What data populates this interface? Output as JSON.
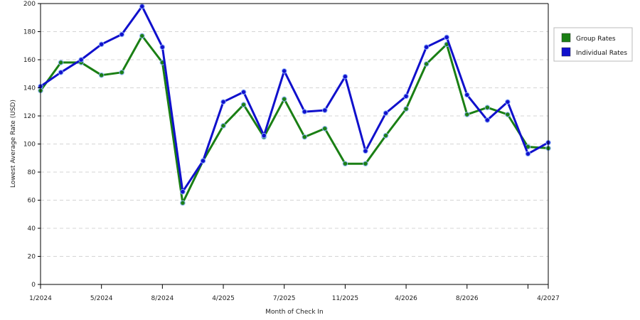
{
  "chart_data": {
    "type": "line",
    "title": "",
    "xlabel": "Month of Check In",
    "ylabel": "Lowest Average Rate (USD)",
    "ylim": [
      0,
      200
    ],
    "yticks": [
      0,
      20,
      40,
      60,
      80,
      100,
      120,
      140,
      160,
      180,
      200
    ],
    "grid": "horizontal dashed",
    "legend_position": "top-right",
    "x_tick_labels": [
      {
        "index": 0,
        "label": "1/2024"
      },
      {
        "index": 3,
        "label": "5/2024"
      },
      {
        "index": 6,
        "label": "8/2024"
      },
      {
        "index": 9,
        "label": "4/2025"
      },
      {
        "index": 12,
        "label": "7/2025"
      },
      {
        "index": 15,
        "label": "11/2025"
      },
      {
        "index": 18,
        "label": "4/2026"
      },
      {
        "index": 21,
        "label": "8/2026"
      },
      {
        "index": 24,
        "label": ""
      },
      {
        "index": 25,
        "label": "4/2027"
      }
    ],
    "point_count": 26,
    "series": [
      {
        "name": "Group Rates",
        "color": "#1a7f14",
        "values": [
          138,
          158,
          158,
          149,
          151,
          177,
          158,
          58,
          88,
          113,
          128,
          105,
          132,
          105,
          111,
          86,
          86,
          106,
          125,
          157,
          171,
          121,
          126,
          121,
          98,
          97
        ]
      },
      {
        "name": "Individual Rates",
        "color": "#1010cc",
        "values": [
          141,
          151,
          160,
          171,
          178,
          198,
          169,
          66,
          88,
          130,
          137,
          106,
          152,
          123,
          124,
          148,
          95,
          122,
          134,
          169,
          176,
          135,
          117,
          130,
          93,
          101
        ]
      }
    ]
  }
}
